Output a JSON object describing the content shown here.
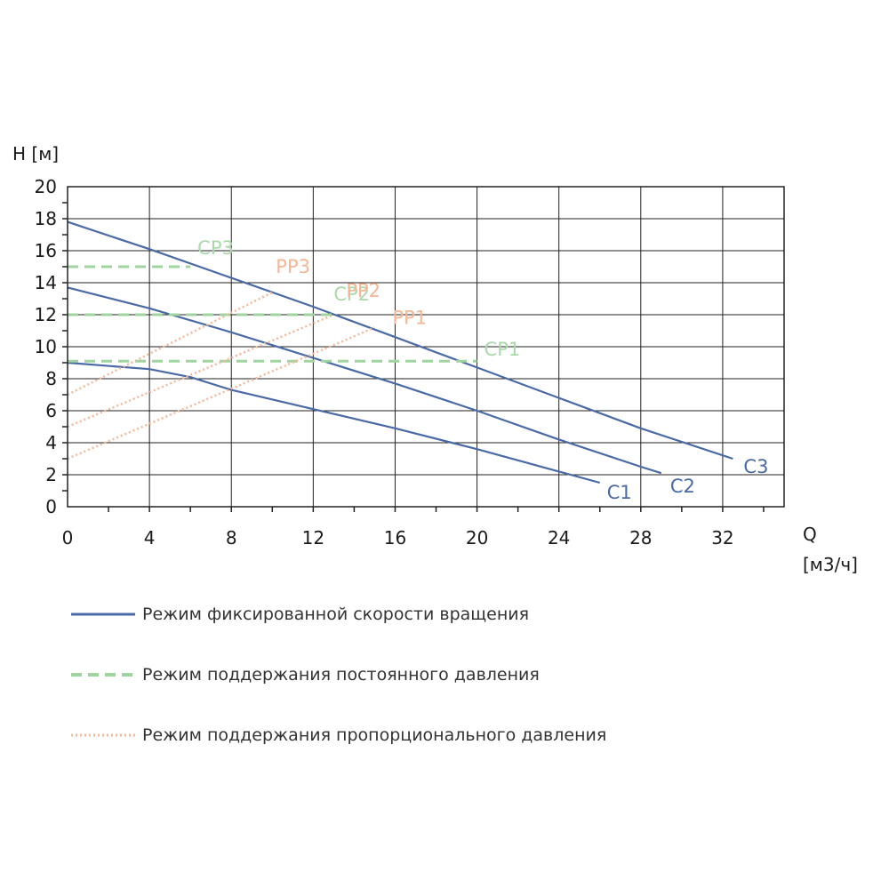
{
  "chart_data": {
    "type": "line",
    "ylabel": "H [м]",
    "xlabel": "Q",
    "xlabel_unit": "[м3/ч]",
    "xlim": [
      0,
      35
    ],
    "ylim": [
      0,
      20
    ],
    "x_ticks": [
      0,
      4,
      8,
      12,
      16,
      20,
      24,
      28,
      32
    ],
    "y_ticks": [
      0,
      2,
      4,
      6,
      8,
      10,
      12,
      14,
      16,
      18,
      20
    ],
    "grid": true,
    "colors": {
      "fixed": "#4a6aa5",
      "constant": "#9fd49f",
      "proportional": "#f4b898"
    },
    "series": [
      {
        "name": "C1",
        "mode": "fixed",
        "points": [
          [
            0,
            9.0
          ],
          [
            4,
            8.6
          ],
          [
            6,
            8.1
          ],
          [
            8,
            7.3
          ],
          [
            12,
            6.1
          ],
          [
            16,
            4.9
          ],
          [
            20,
            3.6
          ],
          [
            24,
            2.2
          ],
          [
            26,
            1.5
          ]
        ]
      },
      {
        "name": "C2",
        "mode": "fixed",
        "points": [
          [
            0,
            13.7
          ],
          [
            4,
            12.4
          ],
          [
            8,
            10.9
          ],
          [
            12,
            9.3
          ],
          [
            16,
            7.7
          ],
          [
            20,
            6.0
          ],
          [
            24,
            4.2
          ],
          [
            28,
            2.5
          ],
          [
            29,
            2.1
          ]
        ]
      },
      {
        "name": "C3",
        "mode": "fixed",
        "points": [
          [
            0,
            17.8
          ],
          [
            4,
            16.1
          ],
          [
            8,
            14.3
          ],
          [
            12,
            12.5
          ],
          [
            16,
            10.6
          ],
          [
            20,
            8.7
          ],
          [
            24,
            6.8
          ],
          [
            28,
            4.9
          ],
          [
            32.5,
            3.0
          ]
        ]
      },
      {
        "name": "CP1",
        "mode": "constant",
        "points": [
          [
            0,
            9.1
          ],
          [
            20,
            9.1
          ]
        ]
      },
      {
        "name": "CP2",
        "mode": "constant",
        "points": [
          [
            0,
            12.0
          ],
          [
            13,
            12.0
          ]
        ]
      },
      {
        "name": "CP3",
        "mode": "constant",
        "points": [
          [
            0,
            15.0
          ],
          [
            6,
            15.0
          ]
        ]
      },
      {
        "name": "PP1",
        "mode": "proportional",
        "points": [
          [
            0,
            3.0
          ],
          [
            15,
            11.2
          ]
        ]
      },
      {
        "name": "PP2",
        "mode": "proportional",
        "points": [
          [
            0,
            5.0
          ],
          [
            13,
            12.0
          ]
        ]
      },
      {
        "name": "PP3",
        "mode": "proportional",
        "points": [
          [
            0,
            7.0
          ],
          [
            10,
            13.4
          ]
        ]
      }
    ],
    "legend": [
      {
        "mode": "fixed",
        "label": "Режим фиксированной скорости вращения"
      },
      {
        "mode": "constant",
        "label": "Режим поддержания постоянного давления"
      },
      {
        "mode": "proportional",
        "label": "Режим поддержания пропорционального давления"
      }
    ]
  }
}
